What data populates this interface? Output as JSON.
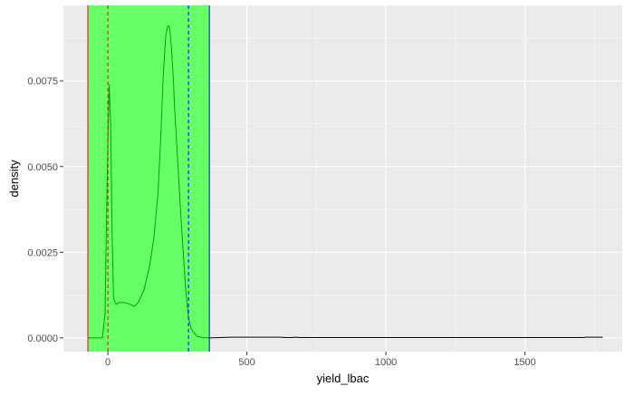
{
  "chart_data": {
    "type": "area",
    "title": "",
    "xlabel": "yield_lbac",
    "ylabel": "density",
    "xlim": [
      -160,
      1850
    ],
    "ylim": [
      -0.0004,
      0.0097
    ],
    "x_ticks": [
      0,
      500,
      1000,
      1500
    ],
    "x_tick_labels": [
      "0",
      "500",
      "1000",
      "1500"
    ],
    "y_ticks": [
      0,
      0.0025,
      0.005,
      0.0075
    ],
    "y_tick_labels": [
      "0.0000",
      "0.0025",
      "0.0050",
      "0.0075"
    ],
    "grid": true,
    "legend": "none",
    "highlight_region": {
      "x_start": -72,
      "x_end": 365,
      "color": "#66ff66"
    },
    "vertical_lines": [
      {
        "x": -72,
        "color": "#ff0000",
        "style": "solid"
      },
      {
        "x": 0,
        "color": "#ff0000",
        "style": "dashed"
      },
      {
        "x": 290,
        "color": "#0000ff",
        "style": "dashed"
      },
      {
        "x": 365,
        "color": "#0000ff",
        "style": "solid"
      }
    ],
    "series": [
      {
        "color": "#00a000",
        "x": [
          -72,
          -20,
          -10,
          -5,
          0,
          5,
          10,
          15,
          20,
          25,
          30,
          40,
          60,
          80,
          95,
          110,
          130,
          150,
          165,
          180,
          190,
          200,
          208,
          215,
          220,
          225,
          230,
          235,
          240,
          250,
          260,
          270,
          280,
          290,
          300,
          320,
          340,
          365
        ],
        "values": [
          0,
          0,
          0.0007,
          0.0035,
          0.0058,
          0.0074,
          0.0062,
          0.0032,
          0.0012,
          0.00105,
          0.00098,
          0.00103,
          0.00103,
          0.00098,
          0.00092,
          0.00105,
          0.0014,
          0.0021,
          0.0029,
          0.0042,
          0.0058,
          0.0078,
          0.0088,
          0.0091,
          0.0091,
          0.0088,
          0.0083,
          0.0076,
          0.0067,
          0.0053,
          0.0039,
          0.0026,
          0.0014,
          0.0006,
          0.00025,
          5e-05,
          1e-05,
          0
        ]
      },
      {
        "color": "#000000",
        "x": [
          365,
          450,
          550,
          620,
          640,
          660,
          675,
          690,
          750,
          900,
          1100,
          1300,
          1500,
          1650,
          1710,
          1720,
          1780
        ],
        "values": [
          0,
          2e-05,
          2e-05,
          2e-05,
          1e-05,
          1e-05,
          2e-05,
          1e-05,
          1e-05,
          1e-05,
          1e-05,
          1e-05,
          1e-05,
          1e-05,
          1e-05,
          2e-05,
          2e-05
        ]
      }
    ]
  }
}
